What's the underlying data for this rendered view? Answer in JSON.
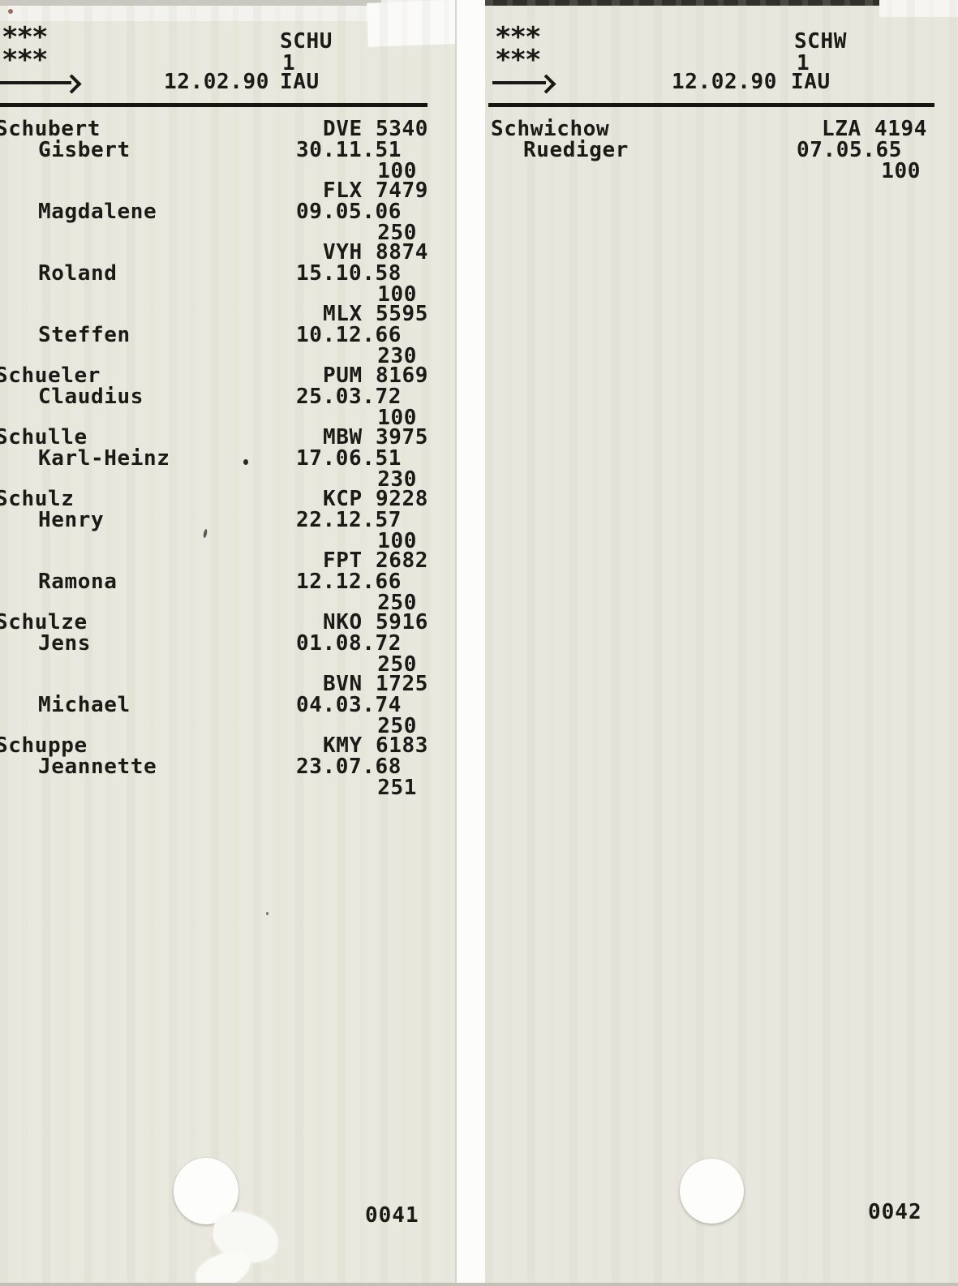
{
  "document_type": "scanned card register pages",
  "colors": {
    "paper_card": "#e9e8de",
    "scan_background": "#fcfcfa",
    "ink": "#1b1a17"
  },
  "cards": [
    {
      "header": {
        "stars1": "***",
        "stars2": "***",
        "date": "12.02.90",
        "station": "IAU",
        "group": "SCHU",
        "page": "1"
      },
      "entries": [
        {
          "surname": "Schubert",
          "given": "Gisbert",
          "code": "DVE 5340",
          "date": "30.11.51",
          "num": "100"
        },
        {
          "surname": "",
          "given": "Magdalene",
          "code": "FLX 7479",
          "date": "09.05.06",
          "num": "250"
        },
        {
          "surname": "",
          "given": "Roland",
          "code": "VYH 8874",
          "date": "15.10.58",
          "num": "100"
        },
        {
          "surname": "",
          "given": "Steffen",
          "code": "MLX 5595",
          "date": "10.12.66",
          "num": "230"
        },
        {
          "surname": "Schueler",
          "given": "Claudius",
          "code": "PUM 8169",
          "date": "25.03.72",
          "num": "100"
        },
        {
          "surname": "Schulle",
          "given": "Karl-Heinz",
          "code": "MBW 3975",
          "date": "17.06.51",
          "num": "230"
        },
        {
          "surname": "Schulz",
          "given": "Henry",
          "code": "KCP 9228",
          "date": "22.12.57",
          "num": "100"
        },
        {
          "surname": "",
          "given": "Ramona",
          "code": "FPT 2682",
          "date": "12.12.66",
          "num": "250"
        },
        {
          "surname": "Schulze",
          "given": "Jens",
          "code": "NKO 5916",
          "date": "01.08.72",
          "num": "250"
        },
        {
          "surname": "",
          "given": "Michael",
          "code": "BVN 1725",
          "date": "04.03.74",
          "num": "250"
        },
        {
          "surname": "Schuppe",
          "given": "Jeannette",
          "code": "KMY 6183",
          "date": "23.07.68",
          "num": "251"
        }
      ],
      "footer_number": "0041"
    },
    {
      "header": {
        "stars1": "***",
        "stars2": "***",
        "date": "12.02.90",
        "station": "IAU",
        "group": "SCHW",
        "page": "1"
      },
      "entries": [
        {
          "surname": "Schwichow",
          "given": "Ruediger",
          "code": "LZA 4194",
          "date": "07.05.65",
          "num": "100"
        }
      ],
      "footer_number": "0042"
    }
  ]
}
